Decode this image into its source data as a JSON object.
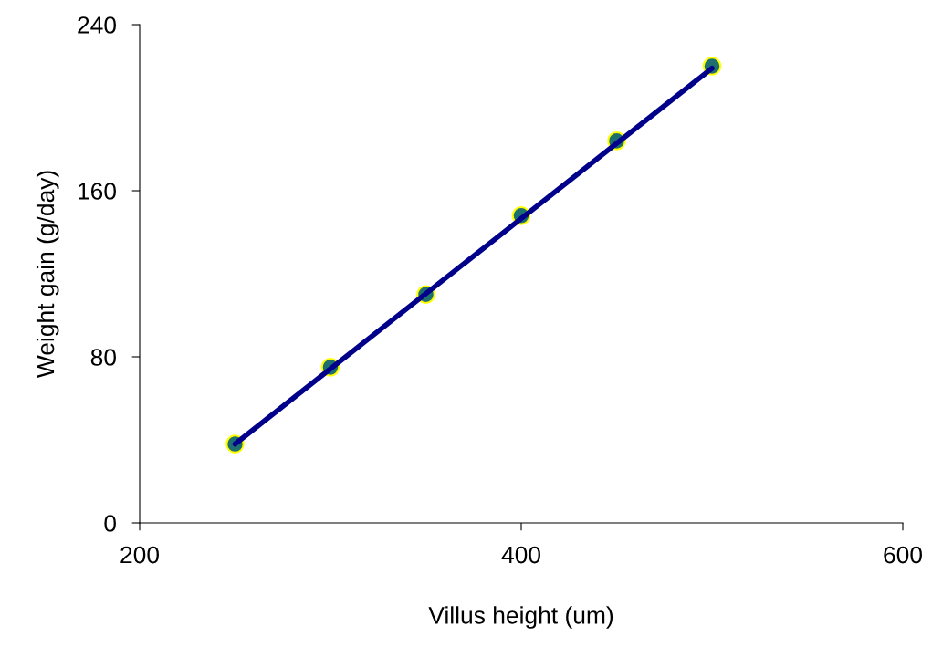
{
  "chart_data": {
    "type": "scatter",
    "xlabel": "Villus height (um)",
    "ylabel": "Weight gain (g/day)",
    "x": [
      250,
      300,
      350,
      400,
      450,
      500
    ],
    "series": [
      {
        "color": "#1f6f6f",
        "marker": "circle",
        "values": [
          38,
          75,
          110,
          148,
          184,
          220
        ]
      },
      {
        "type": "line",
        "color": "#00008b",
        "x": [
          250,
          500
        ],
        "values": [
          38,
          219
        ]
      }
    ],
    "xlim": [
      200,
      600
    ],
    "xticks": [
      200,
      400,
      600
    ],
    "ylim": [
      0,
      240
    ],
    "yticks": [
      0,
      80,
      160,
      240
    ],
    "grid": false
  }
}
